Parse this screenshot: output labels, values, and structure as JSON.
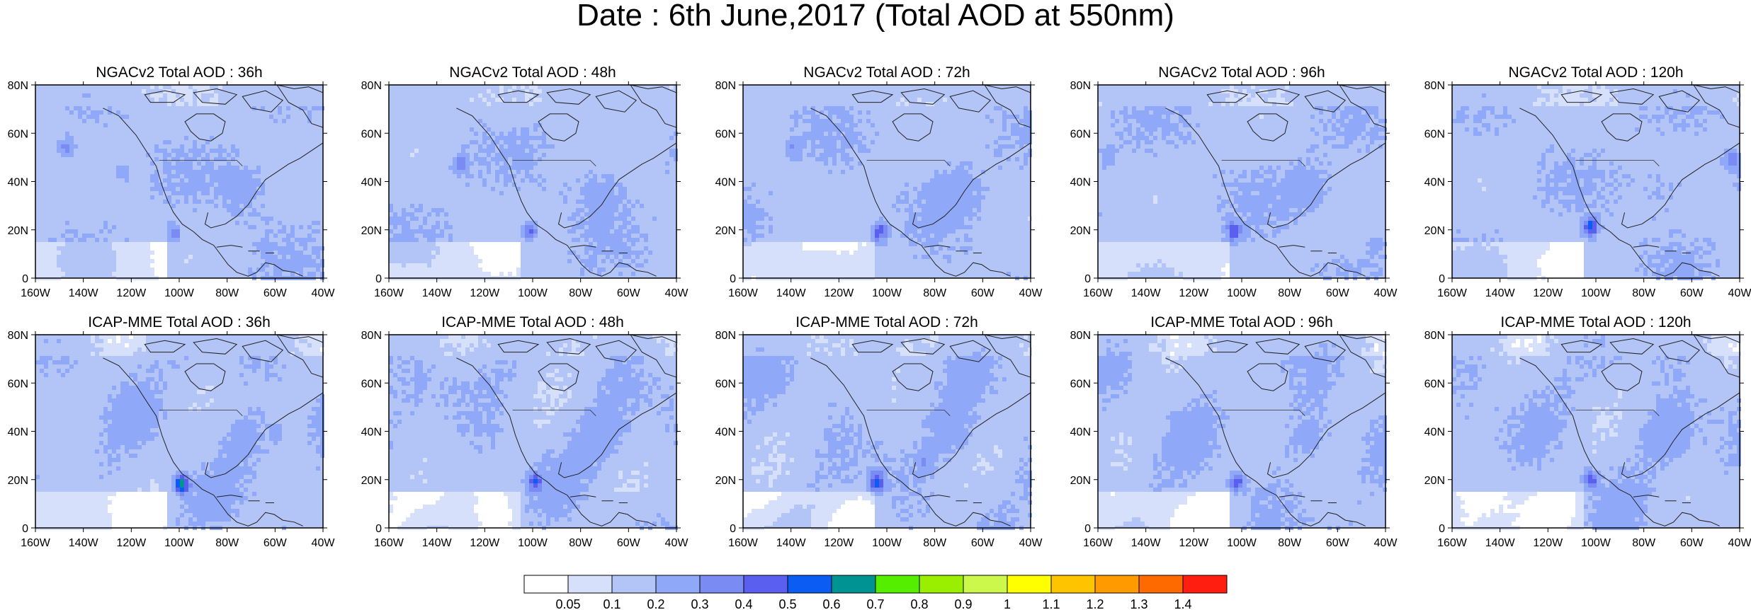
{
  "figure": {
    "title": "Date : 6th June,2017 (Total AOD at 550nm)"
  },
  "chart_data": [
    {
      "type": "heatmap",
      "title": "NGACv2 Total AOD : 36h",
      "model": "NGACv2",
      "lead": "36h",
      "xlim": [
        "160W",
        "40W"
      ],
      "ylim": [
        "0",
        "80N"
      ],
      "x_ticks": [
        "160W",
        "140W",
        "120W",
        "100W",
        "80W",
        "60W",
        "40W"
      ],
      "y_ticks": [
        "0",
        "20N",
        "40N",
        "60N",
        "80N"
      ],
      "hotspots": [
        {
          "lon": -103,
          "lat": 20,
          "aod": 0.4
        },
        {
          "lon": -148,
          "lat": 55,
          "aod": 0.4
        },
        {
          "lon": -125,
          "lat": 45,
          "aod": 0.3
        }
      ]
    },
    {
      "type": "heatmap",
      "title": "NGACv2 Total AOD : 48h",
      "model": "NGACv2",
      "lead": "48h",
      "xlim": [
        "160W",
        "40W"
      ],
      "ylim": [
        "0",
        "80N"
      ],
      "x_ticks": [
        "160W",
        "140W",
        "120W",
        "100W",
        "80W",
        "60W",
        "40W"
      ],
      "y_ticks": [
        "0",
        "20N",
        "40N",
        "60N",
        "80N"
      ],
      "hotspots": [
        {
          "lon": -102,
          "lat": 20,
          "aod": 0.5
        },
        {
          "lon": -131,
          "lat": 48,
          "aod": 0.4
        }
      ]
    },
    {
      "type": "heatmap",
      "title": "NGACv2 Total AOD : 72h",
      "model": "NGACv2",
      "lead": "72h",
      "xlim": [
        "160W",
        "40W"
      ],
      "ylim": [
        "0",
        "80N"
      ],
      "x_ticks": [
        "160W",
        "140W",
        "120W",
        "100W",
        "80W",
        "60W",
        "40W"
      ],
      "y_ticks": [
        "0",
        "20N",
        "40N",
        "60N",
        "80N"
      ],
      "hotspots": [
        {
          "lon": -104,
          "lat": 20,
          "aod": 0.5
        },
        {
          "lon": -140,
          "lat": 55,
          "aod": 0.3
        }
      ]
    },
    {
      "type": "heatmap",
      "title": "NGACv2 Total AOD : 96h",
      "model": "NGACv2",
      "lead": "96h",
      "xlim": [
        "160W",
        "40W"
      ],
      "ylim": [
        "0",
        "80N"
      ],
      "x_ticks": [
        "160W",
        "140W",
        "120W",
        "100W",
        "80W",
        "60W",
        "40W"
      ],
      "y_ticks": [
        "0",
        "20N",
        "40N",
        "60N",
        "80N"
      ],
      "hotspots": [
        {
          "lon": -104,
          "lat": 20,
          "aod": 0.5
        },
        {
          "lon": -157,
          "lat": 52,
          "aod": 0.3
        },
        {
          "lon": -45,
          "lat": 15,
          "aod": 0.3
        }
      ]
    },
    {
      "type": "heatmap",
      "title": "NGACv2 Total AOD : 120h",
      "model": "NGACv2",
      "lead": "120h",
      "xlim": [
        "160W",
        "40W"
      ],
      "ylim": [
        "0",
        "80N"
      ],
      "x_ticks": [
        "160W",
        "140W",
        "120W",
        "100W",
        "80W",
        "60W",
        "40W"
      ],
      "y_ticks": [
        "0",
        "20N",
        "40N",
        "60N",
        "80N"
      ],
      "hotspots": [
        {
          "lon": -103,
          "lat": 22,
          "aod": 0.6
        },
        {
          "lon": -44,
          "lat": 50,
          "aod": 0.4
        }
      ]
    },
    {
      "type": "heatmap",
      "title": "ICAP-MME Total AOD : 36h",
      "model": "ICAP-MME",
      "lead": "36h",
      "xlim": [
        "160W",
        "40W"
      ],
      "ylim": [
        "0",
        "80N"
      ],
      "x_ticks": [
        "160W",
        "140W",
        "120W",
        "100W",
        "80W",
        "60W",
        "40W"
      ],
      "y_ticks": [
        "0",
        "20N",
        "40N",
        "60N",
        "80N"
      ],
      "hotspots": [
        {
          "lon": -100,
          "lat": 19,
          "aod": 0.7
        },
        {
          "lon": -60,
          "lat": 40,
          "aod": 0.3
        }
      ]
    },
    {
      "type": "heatmap",
      "title": "ICAP-MME Total AOD : 48h",
      "model": "ICAP-MME",
      "lead": "48h",
      "xlim": [
        "160W",
        "40W"
      ],
      "ylim": [
        "0",
        "80N"
      ],
      "x_ticks": [
        "160W",
        "140W",
        "120W",
        "100W",
        "80W",
        "60W",
        "40W"
      ],
      "y_ticks": [
        "0",
        "20N",
        "40N",
        "60N",
        "80N"
      ],
      "hotspots": [
        {
          "lon": -100,
          "lat": 20,
          "aod": 0.5
        }
      ]
    },
    {
      "type": "heatmap",
      "title": "ICAP-MME Total AOD : 72h",
      "model": "ICAP-MME",
      "lead": "72h",
      "xlim": [
        "160W",
        "40W"
      ],
      "ylim": [
        "0",
        "80N"
      ],
      "x_ticks": [
        "160W",
        "140W",
        "120W",
        "100W",
        "80W",
        "60W",
        "40W"
      ],
      "y_ticks": [
        "0",
        "20N",
        "40N",
        "60N",
        "80N"
      ],
      "hotspots": [
        {
          "lon": -105,
          "lat": 20,
          "aod": 0.6
        },
        {
          "lon": -85,
          "lat": 28,
          "aod": 0.3
        }
      ]
    },
    {
      "type": "heatmap",
      "title": "ICAP-MME Total AOD : 96h",
      "model": "ICAP-MME",
      "lead": "96h",
      "xlim": [
        "160W",
        "40W"
      ],
      "ylim": [
        "0",
        "80N"
      ],
      "x_ticks": [
        "160W",
        "140W",
        "120W",
        "100W",
        "80W",
        "60W",
        "40W"
      ],
      "y_ticks": [
        "0",
        "20N",
        "40N",
        "60N",
        "80N"
      ],
      "hotspots": [
        {
          "lon": -103,
          "lat": 20,
          "aod": 0.5
        }
      ]
    },
    {
      "type": "heatmap",
      "title": "ICAP-MME Total AOD : 120h",
      "model": "ICAP-MME",
      "lead": "120h",
      "xlim": [
        "160W",
        "40W"
      ],
      "ylim": [
        "0",
        "80N"
      ],
      "x_ticks": [
        "160W",
        "140W",
        "120W",
        "100W",
        "80W",
        "60W",
        "40W"
      ],
      "y_ticks": [
        "0",
        "20N",
        "40N",
        "60N",
        "80N"
      ],
      "hotspots": [
        {
          "lon": -103,
          "lat": 21,
          "aod": 0.5
        }
      ]
    }
  ],
  "colorbar": {
    "labels": [
      "0.05",
      "0.1",
      "0.2",
      "0.3",
      "0.4",
      "0.5",
      "0.6",
      "0.7",
      "0.8",
      "0.9",
      "1",
      "1.1",
      "1.2",
      "1.3",
      "1.4"
    ],
    "colors": [
      "#ffffff",
      "#d6e0fa",
      "#b3c4f6",
      "#8fa8f8",
      "#7a8cf4",
      "#5a5ff0",
      "#0a5cf2",
      "#009393",
      "#55ee00",
      "#9aee00",
      "#ccf84c",
      "#ffff00",
      "#ffc400",
      "#ff9a00",
      "#ff6a00",
      "#ff1e10"
    ]
  }
}
